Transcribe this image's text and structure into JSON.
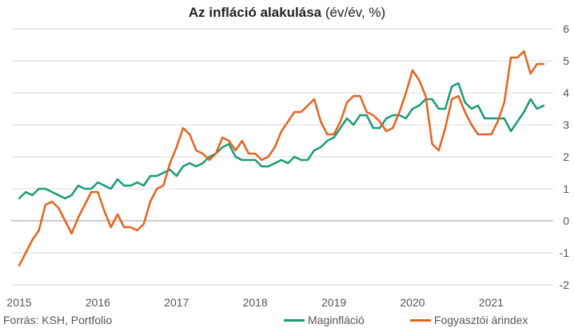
{
  "title": {
    "bold": "Az infláció alakulása",
    "normal": "(év/év, %)"
  },
  "source": "Forrás: KSH, Portfolio",
  "colors": {
    "core": "#1a9b77",
    "cpi": "#e8621f",
    "grid": "#d9d9d9",
    "zero": "#999999"
  },
  "chart_data": {
    "type": "line",
    "title": "Az infláció alakulása (év/év, %)",
    "xlabel": "",
    "ylabel": "",
    "x_ticks": [
      "2015",
      "2016",
      "2017",
      "2018",
      "2019",
      "2020",
      "2021"
    ],
    "y_ticks": [
      "6",
      "5",
      "4",
      "3",
      "2",
      "1",
      "0",
      "-1",
      "-2"
    ],
    "ylim": [
      -2,
      6
    ],
    "xlim": [
      "2015-01",
      "2021-09"
    ],
    "grid": "horizontal",
    "legend_position": "bottom",
    "x": [
      "2015-01",
      "2015-02",
      "2015-03",
      "2015-04",
      "2015-05",
      "2015-06",
      "2015-07",
      "2015-08",
      "2015-09",
      "2015-10",
      "2015-11",
      "2015-12",
      "2016-01",
      "2016-02",
      "2016-03",
      "2016-04",
      "2016-05",
      "2016-06",
      "2016-07",
      "2016-08",
      "2016-09",
      "2016-10",
      "2016-11",
      "2016-12",
      "2017-01",
      "2017-02",
      "2017-03",
      "2017-04",
      "2017-05",
      "2017-06",
      "2017-07",
      "2017-08",
      "2017-09",
      "2017-10",
      "2017-11",
      "2017-12",
      "2018-01",
      "2018-02",
      "2018-03",
      "2018-04",
      "2018-05",
      "2018-06",
      "2018-07",
      "2018-08",
      "2018-09",
      "2018-10",
      "2018-11",
      "2018-12",
      "2019-01",
      "2019-02",
      "2019-03",
      "2019-04",
      "2019-05",
      "2019-06",
      "2019-07",
      "2019-08",
      "2019-09",
      "2019-10",
      "2019-11",
      "2019-12",
      "2020-01",
      "2020-02",
      "2020-03",
      "2020-04",
      "2020-05",
      "2020-06",
      "2020-07",
      "2020-08",
      "2020-09",
      "2020-10",
      "2020-11",
      "2020-12",
      "2021-01",
      "2021-02",
      "2021-03",
      "2021-04",
      "2021-05",
      "2021-06",
      "2021-07",
      "2021-08",
      "2021-09"
    ],
    "series": [
      {
        "name": "Maginfláció",
        "values": [
          0.7,
          0.9,
          0.8,
          1.0,
          1.0,
          0.9,
          0.8,
          0.7,
          0.8,
          1.1,
          1.0,
          1.0,
          1.2,
          1.1,
          1.0,
          1.3,
          1.1,
          1.1,
          1.2,
          1.1,
          1.4,
          1.4,
          1.5,
          1.6,
          1.4,
          1.7,
          1.8,
          1.7,
          1.8,
          2.0,
          2.1,
          2.3,
          2.4,
          2.0,
          1.9,
          1.9,
          1.9,
          1.7,
          1.7,
          1.8,
          1.9,
          1.8,
          2.0,
          1.9,
          1.9,
          2.2,
          2.3,
          2.5,
          2.6,
          2.9,
          3.2,
          3.0,
          3.3,
          3.3,
          2.9,
          2.9,
          3.2,
          3.3,
          3.3,
          3.2,
          3.5,
          3.6,
          3.8,
          3.8,
          3.5,
          3.5,
          4.2,
          4.3,
          3.7,
          3.5,
          3.6,
          3.2,
          3.2,
          3.2,
          3.2,
          2.8,
          3.1,
          3.4,
          3.8,
          3.5,
          3.6
        ]
      },
      {
        "name": "Fogyasztói árindex",
        "values": [
          -1.4,
          -1.0,
          -0.6,
          -0.3,
          0.5,
          0.6,
          0.4,
          0.0,
          -0.4,
          0.1,
          0.5,
          0.9,
          0.9,
          0.3,
          -0.2,
          0.2,
          -0.2,
          -0.2,
          -0.3,
          -0.1,
          0.6,
          1.0,
          1.1,
          1.8,
          2.3,
          2.9,
          2.7,
          2.2,
          2.1,
          1.9,
          2.1,
          2.6,
          2.5,
          2.2,
          2.5,
          2.1,
          2.1,
          1.9,
          2.0,
          2.3,
          2.8,
          3.1,
          3.4,
          3.4,
          3.6,
          3.8,
          3.1,
          2.7,
          2.7,
          3.1,
          3.7,
          3.9,
          3.9,
          3.4,
          3.3,
          3.1,
          2.8,
          2.9,
          3.4,
          4.0,
          4.7,
          4.4,
          3.9,
          2.4,
          2.2,
          2.9,
          3.8,
          3.9,
          3.4,
          3.0,
          2.7,
          2.7,
          2.7,
          3.1,
          3.7,
          5.1,
          5.1,
          5.3,
          4.6,
          4.9,
          4.9
        ]
      }
    ]
  },
  "legend": [
    {
      "label": "Maginfláció"
    },
    {
      "label": "Fogyasztói árindex"
    }
  ]
}
